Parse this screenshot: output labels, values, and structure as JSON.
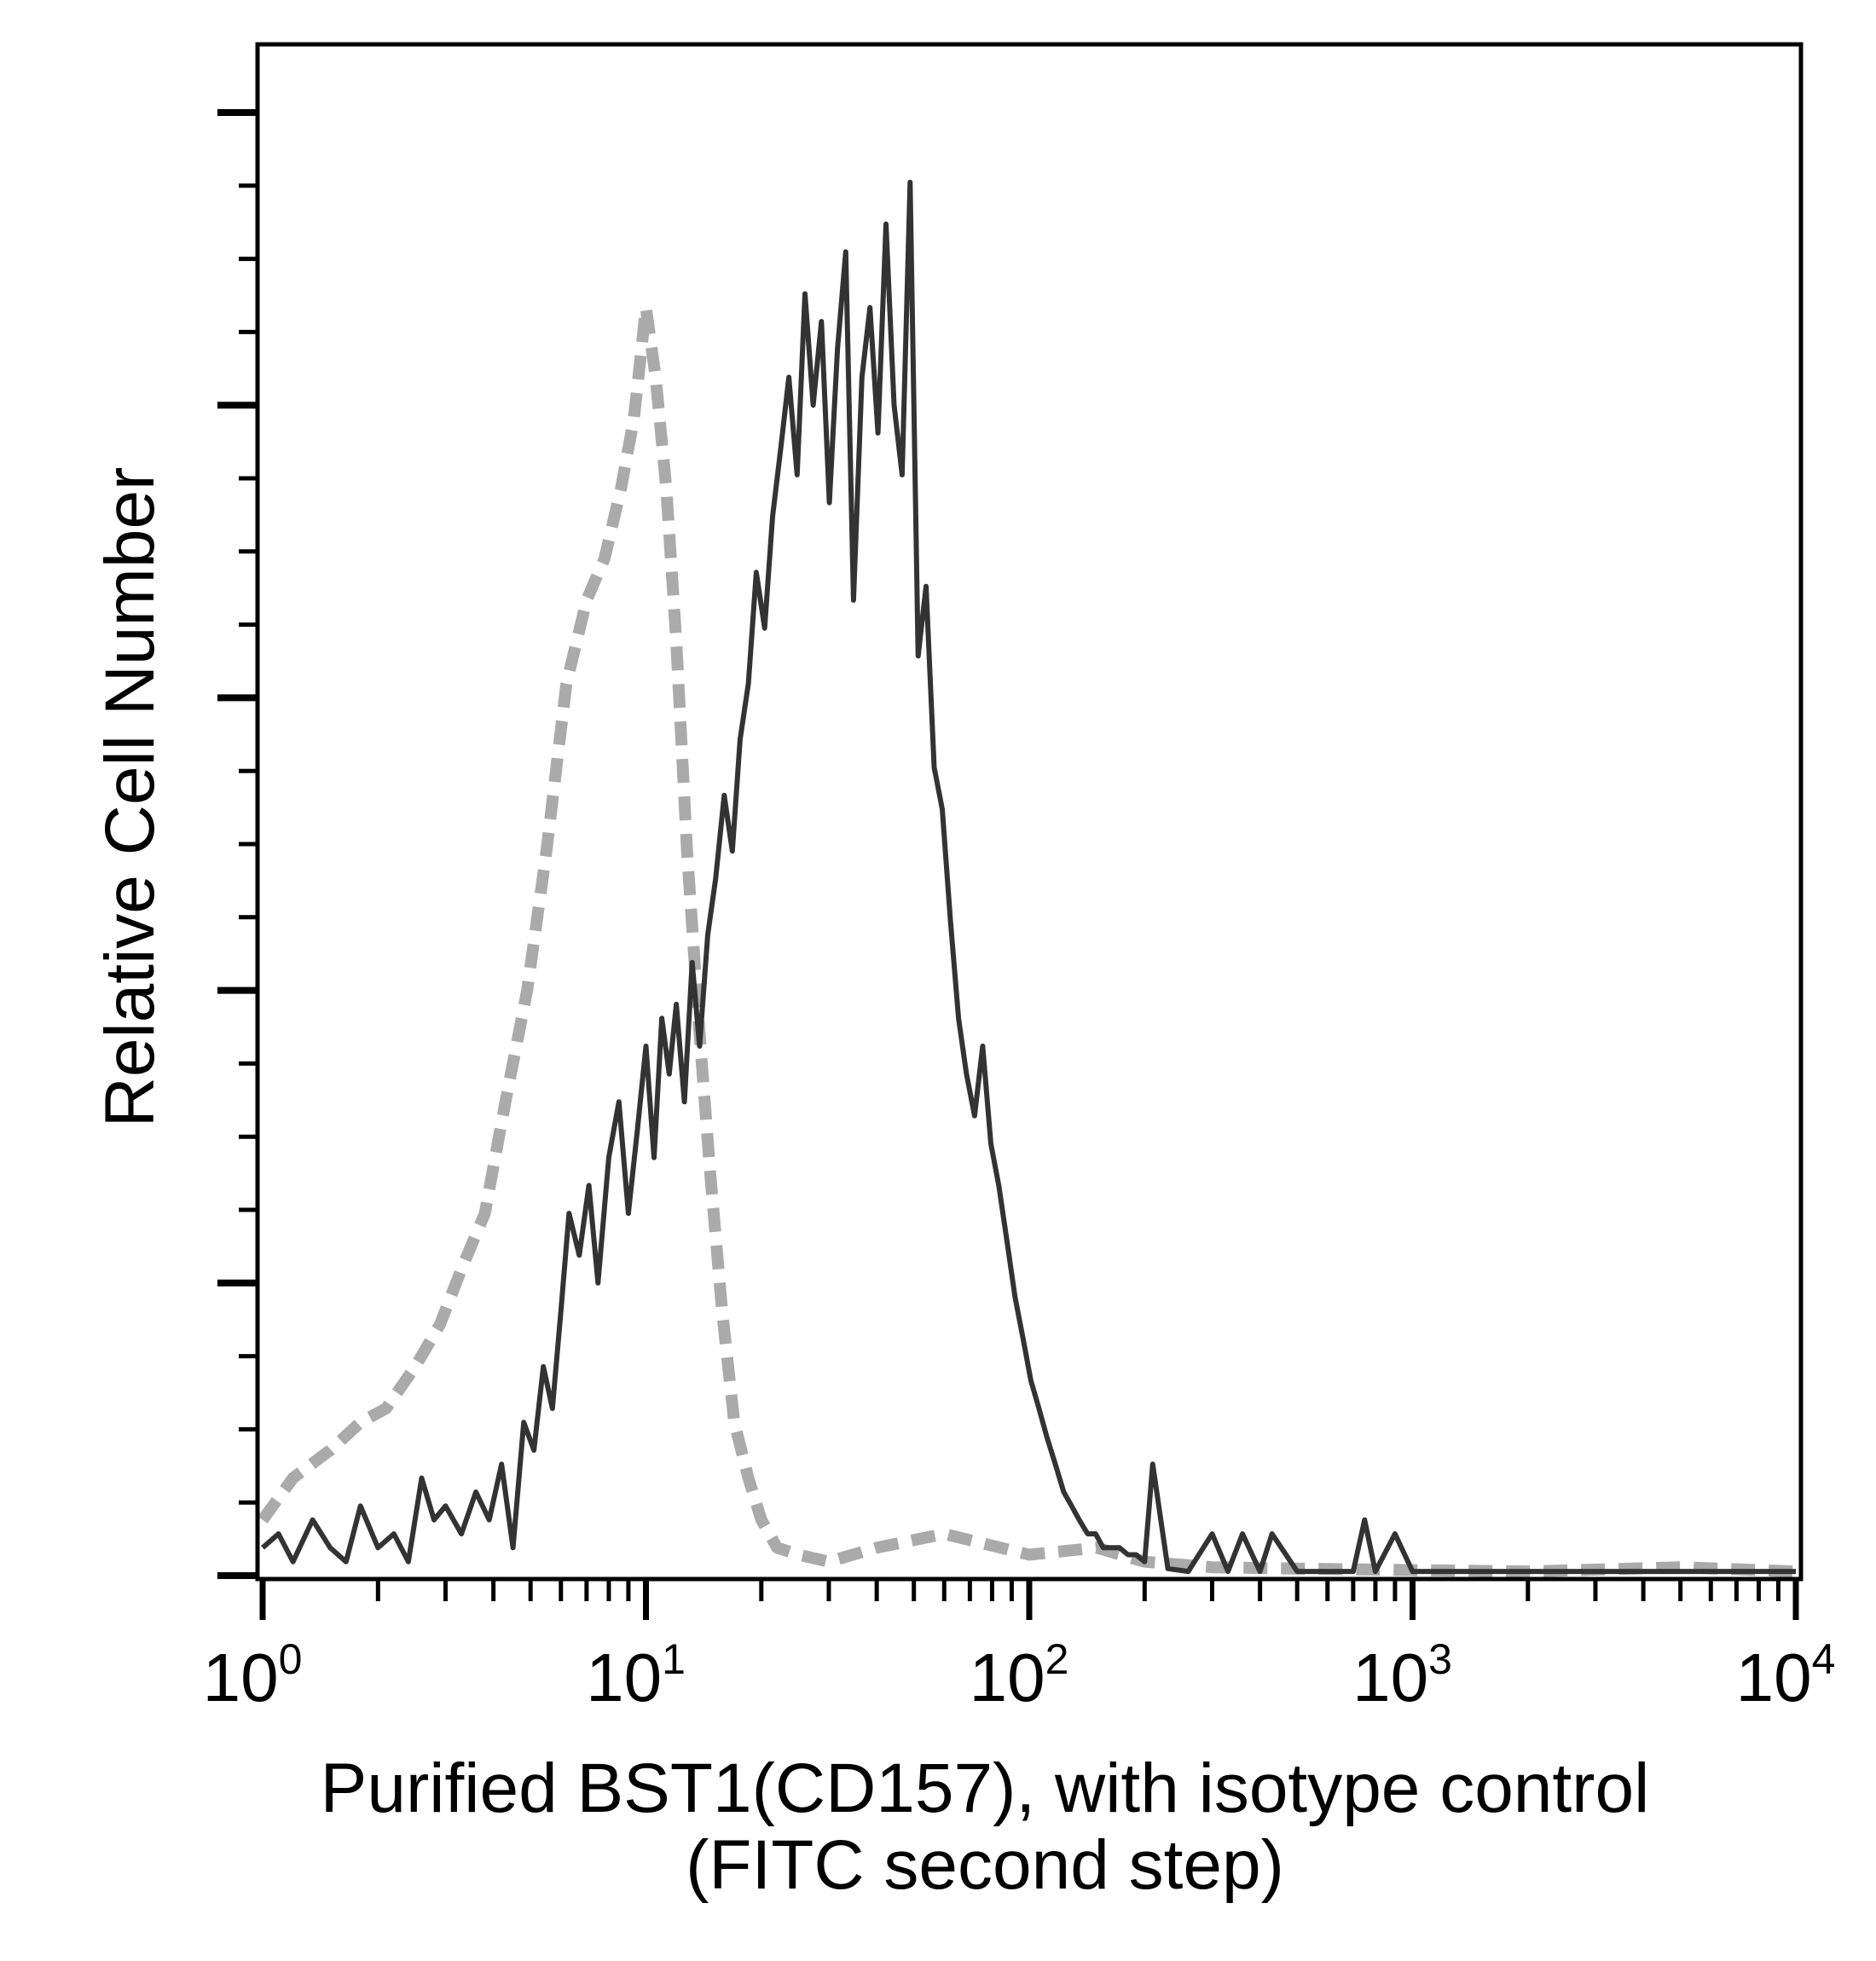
{
  "chart_data": {
    "type": "line",
    "title": "",
    "xlabel": "Purified BST1(CD157), with isotype control",
    "xlabel_line2": "(FITC second step)",
    "ylabel": "Relative Cell Number",
    "x_scale": "log",
    "xlim": [
      1,
      10000
    ],
    "ylim": [
      0,
      105
    ],
    "grid": false,
    "legend": "none",
    "x_ticks": [
      {
        "base": "10",
        "exp": "0",
        "value": 1
      },
      {
        "base": "10",
        "exp": "1",
        "value": 10
      },
      {
        "base": "10",
        "exp": "2",
        "value": 100
      },
      {
        "base": "10",
        "exp": "3",
        "value": 1000
      },
      {
        "base": "10",
        "exp": "4",
        "value": 10000
      }
    ],
    "series": [
      {
        "color": "#aaaaaa",
        "style": "dashed",
        "x": [
          1,
          1.2,
          1.5,
          1.8,
          2.1,
          2.5,
          2.9,
          3.3,
          3.8,
          4.3,
          4.9,
          5.5,
          6.2,
          7.0,
          7.8,
          8.6,
          9.3,
          10.0,
          10.6,
          11.3,
          12.0,
          12.8,
          13.7,
          14.7,
          15.8,
          17.0,
          18.5,
          20.0,
          22.0,
          25.0,
          30.0,
          40.0,
          60.0,
          100,
          150,
          200,
          300,
          500,
          1000,
          2000,
          5000,
          10000
        ],
        "y": [
          4,
          7,
          9,
          11,
          12,
          15,
          18,
          22,
          26,
          34,
          42,
          52,
          64,
          70,
          73,
          78,
          83,
          91,
          86,
          78,
          67,
          52,
          40,
          29,
          19,
          11,
          7,
          4,
          2,
          1.5,
          1,
          2,
          3,
          1.5,
          2,
          1,
          0.6,
          0.5,
          0.4,
          0.3,
          0.6,
          0.3
        ]
      },
      {
        "color": "#333333",
        "style": "solid",
        "x": [
          1,
          1.1,
          1.2,
          1.35,
          1.5,
          1.65,
          1.8,
          2.0,
          2.2,
          2.4,
          2.6,
          2.8,
          3.0,
          3.3,
          3.6,
          3.9,
          4.2,
          4.5,
          4.8,
          5.1,
          5.4,
          5.7,
          6.0,
          6.3,
          6.7,
          7.1,
          7.5,
          8.0,
          8.5,
          9.0,
          9.5,
          10.0,
          10.5,
          11.0,
          11.5,
          12.0,
          12.6,
          13.2,
          13.8,
          14.5,
          15.2,
          16.0,
          16.8,
          17.6,
          18.5,
          19.4,
          20.4,
          21.4,
          22.5,
          23.6,
          24.8,
          26.0,
          27.3,
          28.7,
          30.1,
          31.6,
          33.2,
          34.8,
          36.6,
          38.4,
          40.3,
          42.3,
          44.4,
          46.6,
          48.9,
          51.3,
          53.8,
          56.5,
          59.3,
          62.3,
          65.4,
          68.6,
          72.0,
          75.6,
          79.4,
          83.3,
          87.5,
          91.8,
          96.4,
          101,
          106,
          111,
          117,
          123,
          129,
          135,
          142,
          149,
          156,
          164,
          172,
          181,
          190,
          200,
          210,
          230,
          260,
          300,
          330,
          360,
          400,
          430,
          500,
          600,
          700,
          750,
          800,
          900,
          1000,
          1050,
          1200,
          1500,
          2000,
          3000,
          5000,
          7000,
          10000
        ],
        "y": [
          2,
          3,
          1,
          4,
          2,
          1,
          5,
          2,
          3,
          1,
          7,
          4,
          5,
          3,
          6,
          4,
          8,
          2,
          11,
          9,
          15,
          12,
          19,
          26,
          23,
          28,
          21,
          30,
          34,
          26,
          32,
          38,
          30,
          40,
          36,
          41,
          34,
          44,
          38,
          46,
          50,
          56,
          52,
          60,
          64,
          72,
          68,
          76,
          81,
          86,
          79,
          92,
          84,
          90,
          77,
          88,
          95,
          70,
          86,
          91,
          82,
          97,
          84,
          79,
          100,
          66,
          71,
          58,
          55,
          47,
          40,
          36,
          33,
          38,
          31,
          28,
          24,
          20,
          17,
          14,
          12,
          10,
          8,
          6,
          5,
          4,
          3,
          3,
          2,
          2,
          2,
          1.5,
          1.5,
          1,
          8,
          0.5,
          0.3,
          3,
          0.3,
          3,
          0.3,
          3,
          0.3,
          0.3,
          0.3,
          4,
          0.3,
          3,
          0.3,
          0.3,
          0.3,
          0.3,
          0.3,
          0.3,
          0.3,
          0.3,
          0.3
        ]
      }
    ]
  }
}
